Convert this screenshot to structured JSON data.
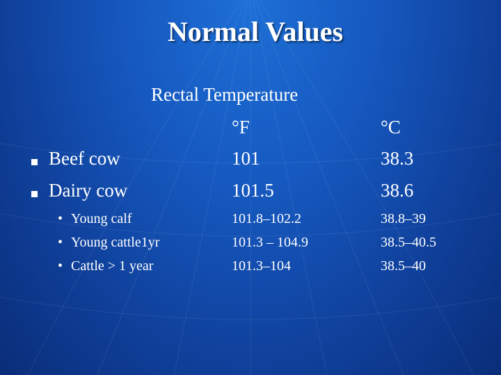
{
  "title": "Normal Values",
  "subheading": "Rectal Temperature",
  "columns": {
    "fahrenheit": "°F",
    "celsius": "°C"
  },
  "rows": [
    {
      "label": "Beef cow",
      "f": "101",
      "c": "38.3"
    },
    {
      "label": "Dairy cow",
      "f": "101.5",
      "c": "38.6"
    },
    {
      "label": "Young calf",
      "f": "101.8–102.2",
      "c": "38.8–39"
    },
    {
      "label": "Young cattle1yr",
      "f": "101.3 – 104.9",
      "c": "38.5–40.5"
    },
    {
      "label": "Cattle > 1 year",
      "f": "101.3–104",
      "c": "38.5–40"
    }
  ],
  "bullet_glyph": "•",
  "colors": {
    "background": "#1659c0",
    "text": "#ffffff"
  }
}
